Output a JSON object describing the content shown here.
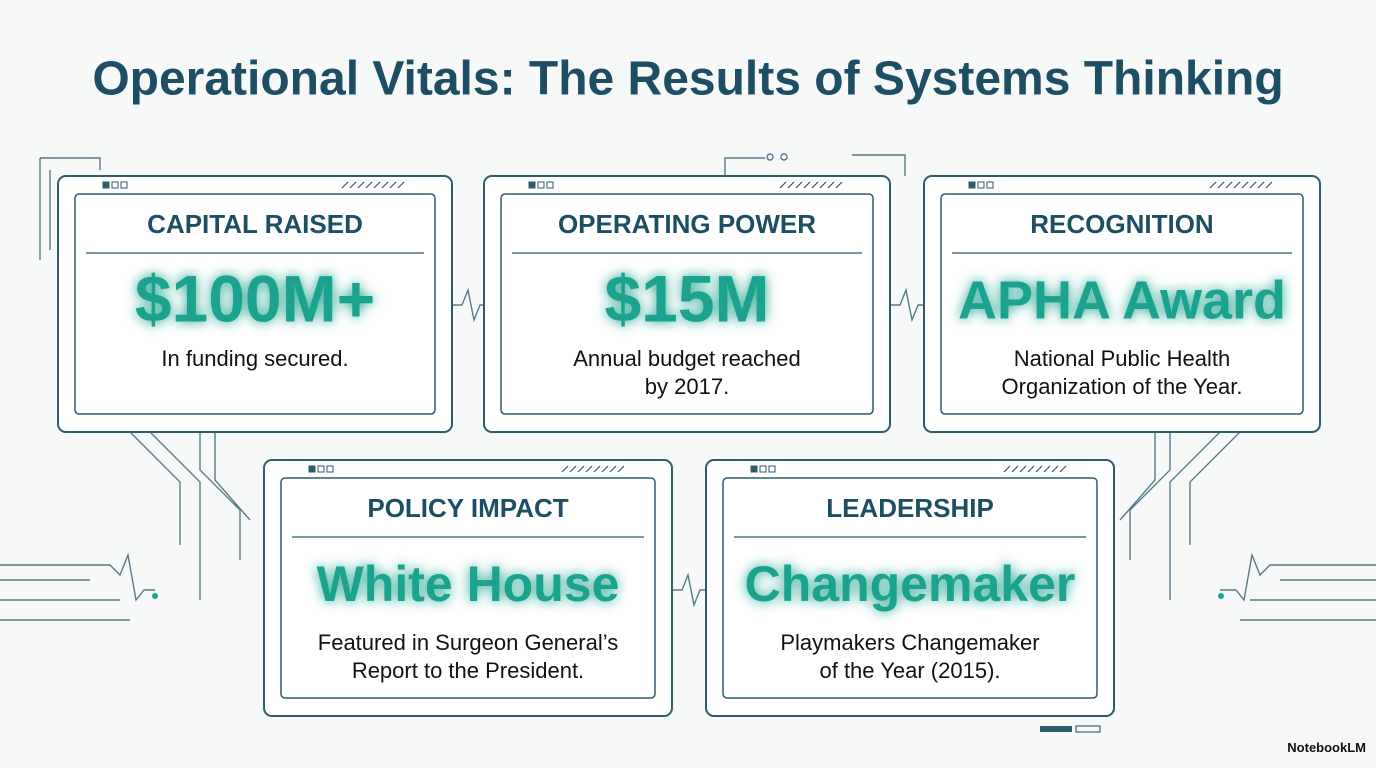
{
  "title": "Operational Vitals: The Results of Systems Thinking",
  "cards": [
    {
      "label": "CAPITAL RAISED",
      "headline": "$100M+",
      "description": [
        "In funding secured."
      ]
    },
    {
      "label": "OPERATING POWER",
      "headline": "$15M",
      "description": [
        "Annual budget reached",
        "by 2017."
      ]
    },
    {
      "label": "RECOGNITION",
      "headline": "APHA Award",
      "description": [
        "National Public Health",
        "Organization of the Year."
      ]
    },
    {
      "label": "POLICY IMPACT",
      "headline": "White House",
      "description": [
        "Featured in Surgeon General’s",
        "Report to the President."
      ]
    },
    {
      "label": "LEADERSHIP",
      "headline": "Changemaker",
      "description": [
        "Playmakers Changemaker",
        "of the Year (2015)."
      ]
    }
  ],
  "watermark": "NotebookLM"
}
